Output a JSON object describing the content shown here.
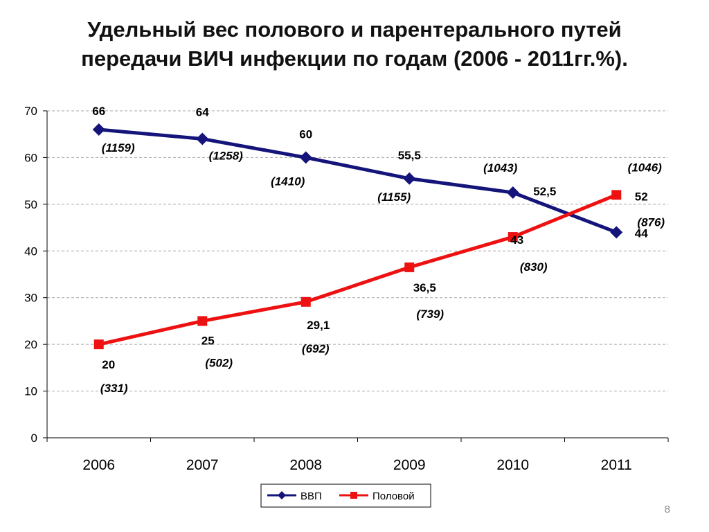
{
  "slide": {
    "title_line1": "Удельный вес полового и парентерального путей",
    "title_line2": "передачи ВИЧ инфекции по годам (2006 - 2011гг.%).",
    "page_number": "8"
  },
  "chart_data": {
    "type": "line",
    "categories": [
      "2006",
      "2007",
      "2008",
      "2009",
      "2010",
      "2011"
    ],
    "ylim": [
      0,
      70
    ],
    "yticks": [
      "0",
      "10",
      "20",
      "30",
      "40",
      "50",
      "60",
      "70"
    ],
    "grid": true,
    "legend_position": "bottom",
    "series": [
      {
        "name": "ВВП",
        "color": "#14147a",
        "marker": "diamond",
        "values": [
          66,
          64,
          60,
          55.5,
          52.5,
          44
        ],
        "value_labels": [
          "66",
          "64",
          "60",
          "55,5",
          "52,5",
          "44"
        ],
        "count_labels": [
          "(1159)",
          "(1258)",
          "(1410)",
          "(1155)",
          "(1043)",
          "(1046)"
        ]
      },
      {
        "name": "Половой",
        "color": "#ee1111",
        "marker": "square",
        "values": [
          20,
          25,
          29.1,
          36.5,
          43,
          52
        ],
        "value_labels": [
          "20",
          "25",
          "29,1",
          "36,5",
          "43",
          "52"
        ],
        "count_labels": [
          "(331)",
          "(502)",
          "(692)",
          "(739)",
          "(830)",
          "(876)"
        ]
      }
    ]
  }
}
